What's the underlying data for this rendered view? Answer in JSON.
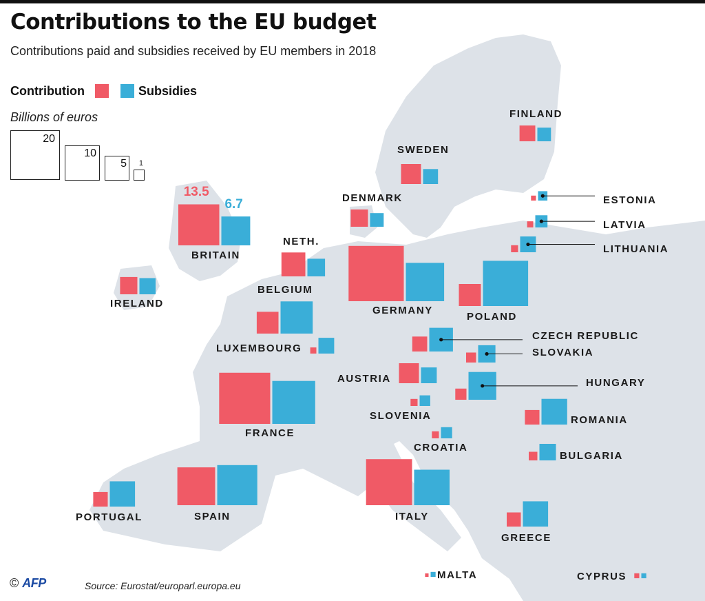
{
  "header": {
    "title": "Contributions to the EU budget",
    "subtitle": "Contributions paid and subsidies received by EU members in 2018"
  },
  "legend": {
    "contribution_label": "Contribution",
    "subsidies_label": "Subsidies",
    "units": "Billions of euros",
    "reference_sizes": [
      "20",
      "10",
      "5",
      "1"
    ]
  },
  "colors": {
    "contribution": "#f05a66",
    "subsidies": "#3aaed8",
    "land": "#dde2e8",
    "sea": "#ffffff"
  },
  "chart_data": {
    "type": "proportional-area-squares",
    "title": "Contributions to the EU budget",
    "subtitle": "Contributions paid and subsidies received by EU members in 2018",
    "units": "Billions of euros",
    "series": [
      {
        "name": "Contribution",
        "color": "#f05a66"
      },
      {
        "name": "Subsidies",
        "color": "#3aaed8"
      }
    ],
    "countries": [
      {
        "name": "FINLAND",
        "contribution": 2.0,
        "subsidies": 1.5
      },
      {
        "name": "SWEDEN",
        "contribution": 3.2,
        "subsidies": 1.8
      },
      {
        "name": "DENMARK",
        "contribution": 2.4,
        "subsidies": 1.5
      },
      {
        "name": "ESTONIA",
        "contribution": 0.2,
        "subsidies": 0.7
      },
      {
        "name": "LATVIA",
        "contribution": 0.3,
        "subsidies": 1.2
      },
      {
        "name": "LITHUANIA",
        "contribution": 0.4,
        "subsidies": 2.0
      },
      {
        "name": "BRITAIN",
        "contribution": 13.5,
        "subsidies": 6.7
      },
      {
        "name": "NETH.",
        "contribution": 4.6,
        "subsidies": 2.5
      },
      {
        "name": "IRELAND",
        "contribution": 2.4,
        "subsidies": 2.1
      },
      {
        "name": "BELGIUM",
        "contribution": 3.8,
        "subsidies": 8.3
      },
      {
        "name": "GERMANY",
        "contribution": 24.5,
        "subsidies": 11.8
      },
      {
        "name": "POLAND",
        "contribution": 3.9,
        "subsidies": 16.4
      },
      {
        "name": "LUXEMBOURG",
        "contribution": 0.3,
        "subsidies": 2.0
      },
      {
        "name": "CZECH REPUBLIC",
        "contribution": 1.8,
        "subsidies": 4.5
      },
      {
        "name": "SLOVAKIA",
        "contribution": 0.8,
        "subsidies": 2.4
      },
      {
        "name": "AUSTRIA",
        "contribution": 3.2,
        "subsidies": 2.0
      },
      {
        "name": "HUNGARY",
        "contribution": 1.0,
        "subsidies": 6.2
      },
      {
        "name": "FRANCE",
        "contribution": 21.0,
        "subsidies": 14.8
      },
      {
        "name": "SLOVENIA",
        "contribution": 0.4,
        "subsidies": 0.9
      },
      {
        "name": "ROMANIA",
        "contribution": 1.7,
        "subsidies": 5.3
      },
      {
        "name": "CROATIA",
        "contribution": 0.4,
        "subsidies": 1.0
      },
      {
        "name": "BULGARIA",
        "contribution": 0.6,
        "subsidies": 2.2
      },
      {
        "name": "PORTUGAL",
        "contribution": 1.7,
        "subsidies": 5.1
      },
      {
        "name": "SPAIN",
        "contribution": 11.5,
        "subsidies": 12.9
      },
      {
        "name": "ITALY",
        "contribution": 17.0,
        "subsidies": 10.1
      },
      {
        "name": "GREECE",
        "contribution": 1.6,
        "subsidies": 5.1
      },
      {
        "name": "MALTA",
        "contribution": 0.1,
        "subsidies": 0.2
      },
      {
        "name": "CYPRUS",
        "contribution": 0.2,
        "subsidies": 0.2
      }
    ],
    "data_labels": {
      "BRITAIN": {
        "contribution": "13.5",
        "subsidies": "6.7"
      }
    }
  },
  "footer": {
    "copyright": "©",
    "agency": "AFP",
    "source": "Source: Eurostat/europarl.europa.eu"
  }
}
